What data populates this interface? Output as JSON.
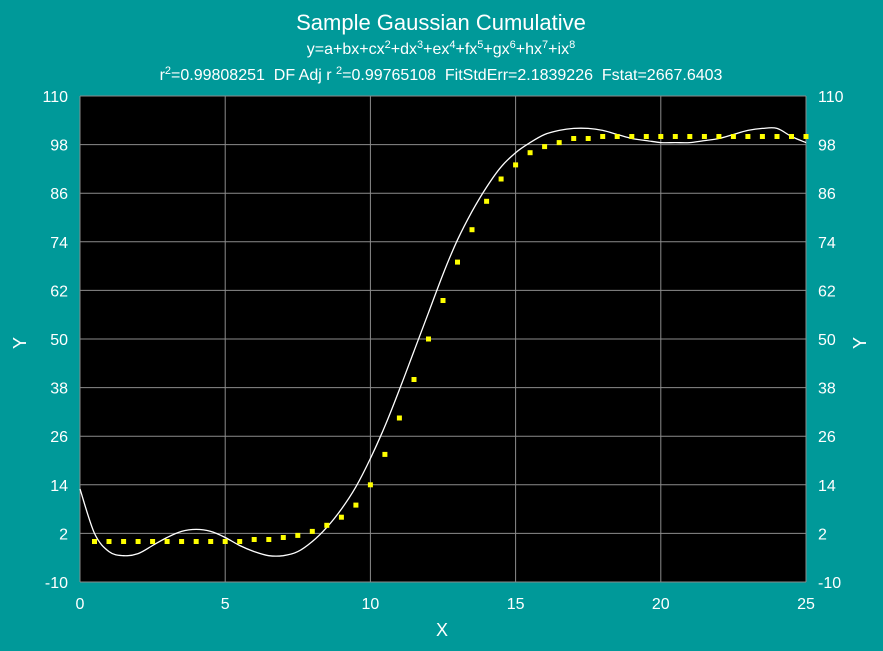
{
  "colors": {
    "background": "#009999",
    "plot_area": "#000000",
    "grid": "#8c8c8c",
    "text": "#ffffff",
    "points": "#ffff00",
    "fit_curve": "#ffffff"
  },
  "chart_data": {
    "type": "scatter",
    "title": "Sample Gaussian Cumulative",
    "equation": {
      "parts": [
        {
          "t": "y=a+bx+cx"
        },
        {
          "s": "2"
        },
        {
          "t": "+dx"
        },
        {
          "s": "3"
        },
        {
          "t": "+ex"
        },
        {
          "s": "4"
        },
        {
          "t": "+fx"
        },
        {
          "s": "5"
        },
        {
          "t": "+gx"
        },
        {
          "s": "6"
        },
        {
          "t": "+hx"
        },
        {
          "s": "7"
        },
        {
          "t": "+ix"
        },
        {
          "s": "8"
        }
      ]
    },
    "stats": {
      "r2_prefix": "r",
      "r2_sup": "2",
      "r2_value": "=0.99808251",
      "adj_prefix": "DF Adj r ",
      "adj_sup": "2",
      "adj_value": "=0.99765108",
      "fit_std_err": "FitStdErr=2.1839226",
      "fstat": "Fstat=2667.6403"
    },
    "xlabel": "X",
    "ylabel": "Y",
    "ylabel_right": "Y",
    "xlim": [
      0,
      25
    ],
    "ylim": [
      -10,
      110
    ],
    "x_ticks": [
      "0",
      "5",
      "10",
      "15",
      "20",
      "25"
    ],
    "y_ticks": [
      "-10",
      "2",
      "14",
      "26",
      "38",
      "50",
      "62",
      "74",
      "86",
      "98",
      "110"
    ],
    "y_ticks_right": [
      "-10",
      "2",
      "14",
      "26",
      "38",
      "50",
      "62",
      "74",
      "86",
      "98",
      "110"
    ],
    "grid": true,
    "series": [
      {
        "kind": "points",
        "x": [
          0.5,
          1,
          1.5,
          2,
          2.5,
          3,
          3.5,
          4,
          4.5,
          5,
          5.5,
          6,
          6.5,
          7,
          7.5,
          8,
          8.5,
          9,
          9.5,
          10,
          10.5,
          11,
          11.5,
          12,
          12.5,
          13,
          13.5,
          14,
          14.5,
          15,
          15.5,
          16,
          16.5,
          17,
          17.5,
          18,
          18.5,
          19,
          19.5,
          20,
          20.5,
          21,
          21.5,
          22,
          22.5,
          23,
          23.5,
          24,
          24.5,
          25
        ],
        "y": [
          0,
          0,
          0,
          0,
          0,
          0,
          0,
          0,
          0,
          0,
          0,
          0.5,
          0.5,
          1,
          1.5,
          2.5,
          4,
          6,
          9,
          14,
          21.5,
          30.5,
          40,
          50,
          59.5,
          69,
          77,
          84,
          89.5,
          93,
          96,
          97.5,
          98.5,
          99.5,
          99.5,
          100,
          100,
          100,
          100,
          100,
          100,
          100,
          100,
          100,
          100,
          100,
          100,
          100,
          100,
          100
        ]
      },
      {
        "kind": "fit",
        "x": [
          0,
          0.5,
          1,
          1.5,
          2,
          2.5,
          3,
          3.5,
          4,
          4.5,
          5,
          5.5,
          6,
          6.5,
          7,
          7.5,
          8,
          8.5,
          9,
          9.5,
          10,
          10.5,
          11,
          11.5,
          12,
          12.5,
          13,
          13.5,
          14,
          14.5,
          15,
          15.5,
          16,
          16.5,
          17,
          17.5,
          18,
          18.5,
          19,
          19.5,
          20,
          20.5,
          21,
          21.5,
          22,
          22.5,
          23,
          23.5,
          24,
          24.5,
          25
        ],
        "y": [
          13,
          2,
          -2.5,
          -3.5,
          -3,
          -1,
          1,
          2.5,
          3,
          2.5,
          1,
          -1,
          -2.5,
          -3.5,
          -3.5,
          -2.5,
          0,
          3.5,
          8,
          13.5,
          20.5,
          28.5,
          37.5,
          47,
          56.5,
          66,
          74.5,
          81.5,
          87.5,
          92.5,
          96,
          98.5,
          100.5,
          101.5,
          102,
          102,
          101.5,
          100.5,
          99.5,
          99,
          98.5,
          98.5,
          98.5,
          99,
          99.5,
          100.5,
          101.5,
          102,
          102,
          100,
          98.5
        ]
      }
    ]
  }
}
